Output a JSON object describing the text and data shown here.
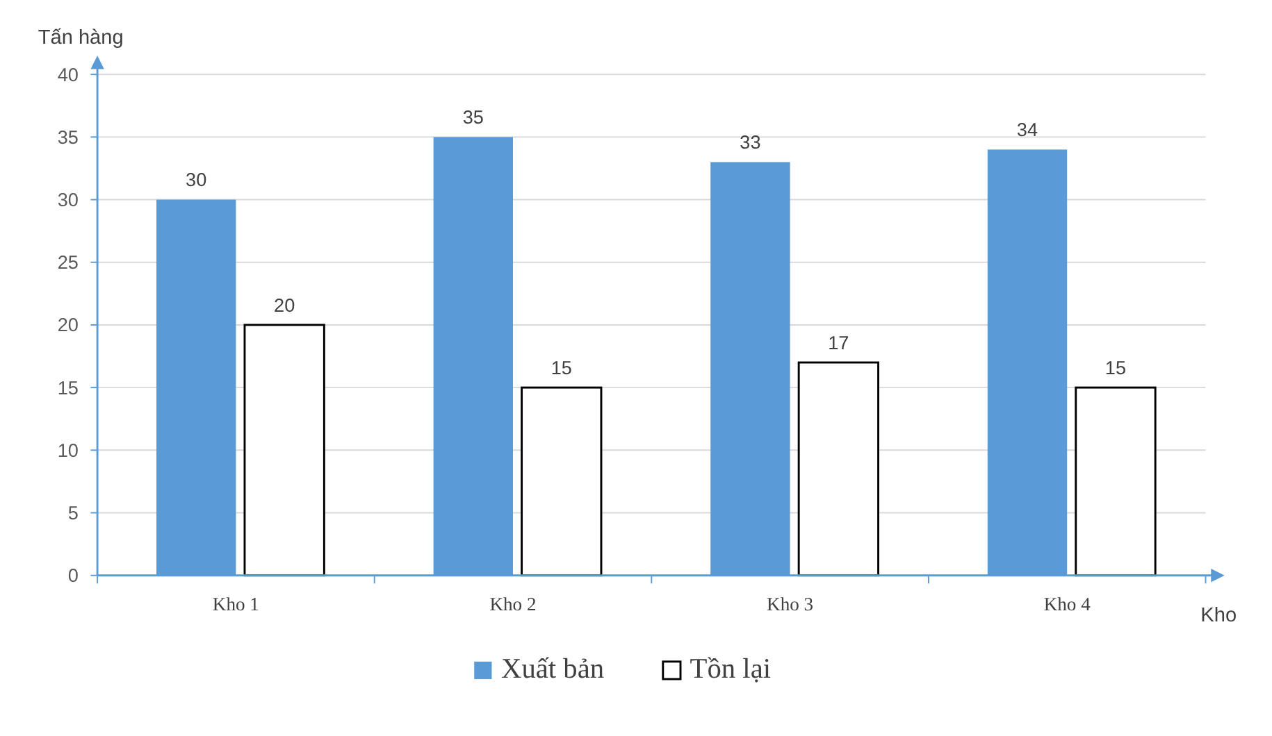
{
  "chart_data": {
    "type": "bar",
    "xlabel": "Kho",
    "ylabel": "Tấn hàng",
    "categories": [
      "Kho 1",
      "Kho 2",
      "Kho 3",
      "Kho 4"
    ],
    "series": [
      {
        "name": "Xuất bản",
        "color": "#5b9bd5",
        "values": [
          30,
          35,
          33,
          34
        ]
      },
      {
        "name": "Tồn lại",
        "color": "#ffffff",
        "values": [
          20,
          15,
          17,
          15
        ]
      }
    ],
    "ylim": [
      0,
      40
    ],
    "yticks": [
      0,
      5,
      10,
      15,
      20,
      25,
      30,
      35,
      40
    ],
    "grid": "y",
    "legend": "bottom",
    "data_labels": true
  }
}
